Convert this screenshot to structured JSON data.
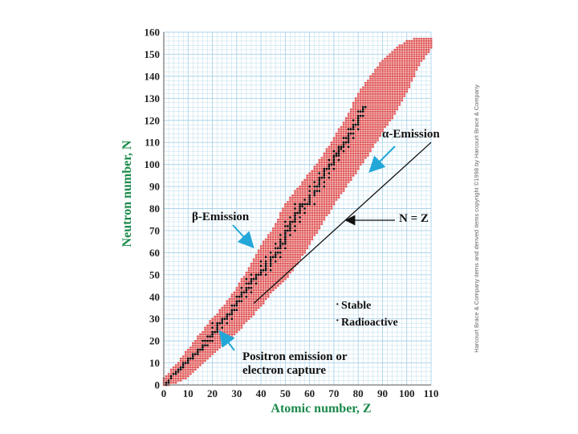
{
  "chart_data": {
    "type": "scatter",
    "title": "",
    "xlabel": "Atomic number, Z",
    "ylabel": "Neutron number, N",
    "xlim": [
      0,
      110
    ],
    "ylim": [
      0,
      160
    ],
    "xticks": [
      0,
      10,
      20,
      30,
      40,
      50,
      60,
      70,
      80,
      90,
      100,
      110
    ],
    "yticks": [
      0,
      10,
      20,
      30,
      40,
      50,
      60,
      70,
      80,
      90,
      100,
      110,
      120,
      130,
      140,
      150,
      160
    ],
    "grid": true,
    "series": [
      {
        "name": "Stable",
        "color": "#000000",
        "points": [
          [
            1,
            0
          ],
          [
            1,
            1
          ],
          [
            2,
            1
          ],
          [
            2,
            2
          ],
          [
            3,
            3
          ],
          [
            3,
            4
          ],
          [
            4,
            5
          ],
          [
            5,
            5
          ],
          [
            5,
            6
          ],
          [
            6,
            6
          ],
          [
            6,
            7
          ],
          [
            7,
            7
          ],
          [
            7,
            8
          ],
          [
            8,
            8
          ],
          [
            8,
            9
          ],
          [
            8,
            10
          ],
          [
            9,
            10
          ],
          [
            10,
            10
          ],
          [
            10,
            11
          ],
          [
            10,
            12
          ],
          [
            11,
            12
          ],
          [
            12,
            12
          ],
          [
            12,
            13
          ],
          [
            12,
            14
          ],
          [
            13,
            14
          ],
          [
            14,
            14
          ],
          [
            14,
            15
          ],
          [
            14,
            16
          ],
          [
            15,
            16
          ],
          [
            16,
            16
          ],
          [
            16,
            17
          ],
          [
            16,
            18
          ],
          [
            16,
            20
          ],
          [
            17,
            18
          ],
          [
            17,
            20
          ],
          [
            18,
            18
          ],
          [
            18,
            20
          ],
          [
            18,
            22
          ],
          [
            19,
            20
          ],
          [
            19,
            22
          ],
          [
            20,
            20
          ],
          [
            20,
            22
          ],
          [
            20,
            23
          ],
          [
            20,
            24
          ],
          [
            20,
            26
          ],
          [
            20,
            28
          ],
          [
            21,
            24
          ],
          [
            22,
            24
          ],
          [
            22,
            25
          ],
          [
            22,
            26
          ],
          [
            22,
            27
          ],
          [
            22,
            28
          ],
          [
            23,
            28
          ],
          [
            24,
            26
          ],
          [
            24,
            28
          ],
          [
            24,
            29
          ],
          [
            24,
            30
          ],
          [
            25,
            30
          ],
          [
            26,
            28
          ],
          [
            26,
            30
          ],
          [
            26,
            31
          ],
          [
            26,
            32
          ],
          [
            27,
            32
          ],
          [
            28,
            30
          ],
          [
            28,
            32
          ],
          [
            28,
            33
          ],
          [
            28,
            34
          ],
          [
            28,
            36
          ],
          [
            29,
            34
          ],
          [
            29,
            36
          ],
          [
            30,
            34
          ],
          [
            30,
            36
          ],
          [
            30,
            37
          ],
          [
            30,
            38
          ],
          [
            30,
            40
          ],
          [
            31,
            38
          ],
          [
            31,
            40
          ],
          [
            32,
            38
          ],
          [
            32,
            40
          ],
          [
            32,
            41
          ],
          [
            32,
            42
          ],
          [
            32,
            44
          ],
          [
            33,
            42
          ],
          [
            34,
            40
          ],
          [
            34,
            42
          ],
          [
            34,
            43
          ],
          [
            34,
            44
          ],
          [
            34,
            46
          ],
          [
            34,
            48
          ],
          [
            35,
            44
          ],
          [
            35,
            46
          ],
          [
            36,
            42
          ],
          [
            36,
            44
          ],
          [
            36,
            46
          ],
          [
            36,
            47
          ],
          [
            36,
            48
          ],
          [
            36,
            50
          ],
          [
            37,
            48
          ],
          [
            38,
            46
          ],
          [
            38,
            48
          ],
          [
            38,
            49
          ],
          [
            38,
            50
          ],
          [
            39,
            50
          ],
          [
            40,
            50
          ],
          [
            40,
            51
          ],
          [
            40,
            52
          ],
          [
            40,
            54
          ],
          [
            40,
            56
          ],
          [
            41,
            52
          ],
          [
            42,
            50
          ],
          [
            42,
            52
          ],
          [
            42,
            53
          ],
          [
            42,
            54
          ],
          [
            42,
            55
          ],
          [
            42,
            56
          ],
          [
            42,
            58
          ],
          [
            44,
            52
          ],
          [
            44,
            54
          ],
          [
            44,
            55
          ],
          [
            44,
            56
          ],
          [
            44,
            57
          ],
          [
            44,
            58
          ],
          [
            44,
            60
          ],
          [
            45,
            58
          ],
          [
            46,
            56
          ],
          [
            46,
            58
          ],
          [
            46,
            59
          ],
          [
            46,
            60
          ],
          [
            46,
            62
          ],
          [
            46,
            64
          ],
          [
            47,
            60
          ],
          [
            47,
            62
          ],
          [
            48,
            58
          ],
          [
            48,
            60
          ],
          [
            48,
            62
          ],
          [
            48,
            63
          ],
          [
            48,
            64
          ],
          [
            48,
            65
          ],
          [
            48,
            66
          ],
          [
            48,
            68
          ],
          [
            49,
            64
          ],
          [
            50,
            62
          ],
          [
            50,
            64
          ],
          [
            50,
            65
          ],
          [
            50,
            66
          ],
          [
            50,
            67
          ],
          [
            50,
            68
          ],
          [
            50,
            69
          ],
          [
            50,
            70
          ],
          [
            50,
            72
          ],
          [
            50,
            74
          ],
          [
            51,
            70
          ],
          [
            51,
            72
          ],
          [
            52,
            68
          ],
          [
            52,
            70
          ],
          [
            52,
            71
          ],
          [
            52,
            72
          ],
          [
            52,
            73
          ],
          [
            52,
            74
          ],
          [
            52,
            76
          ],
          [
            53,
            74
          ],
          [
            54,
            70
          ],
          [
            54,
            72
          ],
          [
            54,
            74
          ],
          [
            54,
            75
          ],
          [
            54,
            76
          ],
          [
            54,
            77
          ],
          [
            54,
            78
          ],
          [
            54,
            80
          ],
          [
            54,
            82
          ],
          [
            55,
            78
          ],
          [
            56,
            74
          ],
          [
            56,
            76
          ],
          [
            56,
            78
          ],
          [
            56,
            79
          ],
          [
            56,
            80
          ],
          [
            56,
            81
          ],
          [
            56,
            82
          ],
          [
            57,
            81
          ],
          [
            57,
            82
          ],
          [
            58,
            78
          ],
          [
            58,
            80
          ],
          [
            58,
            82
          ],
          [
            58,
            84
          ],
          [
            59,
            82
          ],
          [
            60,
            82
          ],
          [
            60,
            83
          ],
          [
            60,
            84
          ],
          [
            60,
            85
          ],
          [
            60,
            86
          ],
          [
            60,
            88
          ],
          [
            60,
            90
          ],
          [
            62,
            82
          ],
          [
            62,
            86
          ],
          [
            62,
            87
          ],
          [
            62,
            88
          ],
          [
            62,
            90
          ],
          [
            62,
            92
          ],
          [
            63,
            88
          ],
          [
            63,
            90
          ],
          [
            64,
            88
          ],
          [
            64,
            90
          ],
          [
            64,
            91
          ],
          [
            64,
            92
          ],
          [
            64,
            93
          ],
          [
            64,
            94
          ],
          [
            64,
            96
          ],
          [
            65,
            94
          ],
          [
            66,
            90
          ],
          [
            66,
            92
          ],
          [
            66,
            94
          ],
          [
            66,
            95
          ],
          [
            66,
            96
          ],
          [
            66,
            97
          ],
          [
            66,
            98
          ],
          [
            67,
            98
          ],
          [
            68,
            94
          ],
          [
            68,
            96
          ],
          [
            68,
            98
          ],
          [
            68,
            99
          ],
          [
            68,
            100
          ],
          [
            68,
            102
          ],
          [
            69,
            100
          ],
          [
            70,
            98
          ],
          [
            70,
            100
          ],
          [
            70,
            101
          ],
          [
            70,
            102
          ],
          [
            70,
            103
          ],
          [
            70,
            104
          ],
          [
            70,
            106
          ],
          [
            71,
            104
          ],
          [
            71,
            105
          ],
          [
            72,
            102
          ],
          [
            72,
            104
          ],
          [
            72,
            105
          ],
          [
            72,
            106
          ],
          [
            72,
            107
          ],
          [
            72,
            108
          ],
          [
            73,
            107
          ],
          [
            73,
            108
          ],
          [
            74,
            106
          ],
          [
            74,
            108
          ],
          [
            74,
            109
          ],
          [
            74,
            110
          ],
          [
            74,
            112
          ],
          [
            75,
            110
          ],
          [
            75,
            112
          ],
          [
            76,
            108
          ],
          [
            76,
            110
          ],
          [
            76,
            111
          ],
          [
            76,
            112
          ],
          [
            76,
            113
          ],
          [
            76,
            114
          ],
          [
            76,
            116
          ],
          [
            77,
            114
          ],
          [
            77,
            116
          ],
          [
            78,
            112
          ],
          [
            78,
            114
          ],
          [
            78,
            116
          ],
          [
            78,
            117
          ],
          [
            78,
            118
          ],
          [
            78,
            120
          ],
          [
            79,
            118
          ],
          [
            80,
            116
          ],
          [
            80,
            118
          ],
          [
            80,
            119
          ],
          [
            80,
            120
          ],
          [
            80,
            121
          ],
          [
            80,
            122
          ],
          [
            80,
            124
          ],
          [
            81,
            122
          ],
          [
            81,
            124
          ],
          [
            82,
            122
          ],
          [
            82,
            124
          ],
          [
            82,
            125
          ],
          [
            82,
            126
          ],
          [
            83,
            126
          ]
        ]
      },
      {
        "name": "Radioactive",
        "color": "#e25555",
        "bands": [
          [
            0,
            0,
            3
          ],
          [
            5,
            1,
            9
          ],
          [
            10,
            4,
            16
          ],
          [
            15,
            9,
            23
          ],
          [
            20,
            14,
            30
          ],
          [
            25,
            19,
            36
          ],
          [
            30,
            24,
            44
          ],
          [
            35,
            30,
            53
          ],
          [
            40,
            36,
            63
          ],
          [
            45,
            43,
            71
          ],
          [
            50,
            48,
            82
          ],
          [
            55,
            55,
            89
          ],
          [
            60,
            64,
            96
          ],
          [
            65,
            73,
            103
          ],
          [
            70,
            82,
            112
          ],
          [
            75,
            90,
            121
          ],
          [
            80,
            98,
            132
          ],
          [
            85,
            106,
            140
          ],
          [
            90,
            115,
            147
          ],
          [
            95,
            123,
            152
          ],
          [
            100,
            133,
            156
          ],
          [
            105,
            145,
            157
          ],
          [
            110,
            153,
            157
          ]
        ]
      }
    ],
    "line": {
      "label": "N = Z",
      "from": [
        37,
        37
      ],
      "to": [
        110,
        110
      ]
    },
    "annotations": [
      {
        "text": "α-Emission",
        "at": [
          86,
          114
        ]
      },
      {
        "text": "β-Emission",
        "at": [
          13,
          75
        ]
      },
      {
        "text": "Positron emission or",
        "at": [
          31,
          13
        ]
      },
      {
        "text": "electron capture",
        "at": [
          31,
          6
        ]
      },
      {
        "text": "N = Z",
        "at": [
          97,
          76
        ]
      }
    ],
    "legend": {
      "placement": "lower-right",
      "stable_marker": "·",
      "radioactive_marker": "·",
      "stable_label": "Stable",
      "radioactive_label": "Radioactive"
    }
  },
  "copyright": "Harcourt Brace & Company items and derived items copyright ©1998 by Harcourt Brace & Company",
  "colors": {
    "stable": "#000000",
    "radioactive": "#e25555",
    "grid": "#a9d3ea",
    "axis_title": "#1a8a4a",
    "arrow": "#22a7d8"
  }
}
